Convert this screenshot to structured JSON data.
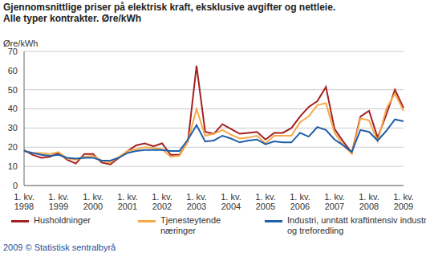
{
  "chart_data": {
    "type": "line",
    "title": "Gjennomsnittlige priser på elektrisk kraft, eksklusive avgifter og nettleie.",
    "subtitle": "Alle typer kontrakter. Øre/kWh",
    "y_label": "Øre/kWh",
    "source": "2009 © Statistisk sentralbyrå",
    "categories": [
      "1. kv. 1998",
      null,
      null,
      null,
      "1. kv. 1999",
      null,
      null,
      null,
      "1. kv. 2000",
      null,
      null,
      null,
      "1. kv. 2001",
      null,
      null,
      null,
      "1. kv. 2002",
      null,
      null,
      null,
      "1. kv. 2003",
      null,
      null,
      null,
      "1. kv. 2004",
      null,
      null,
      null,
      "1. kv. 2005",
      null,
      null,
      null,
      "1. kv. 2006",
      null,
      null,
      null,
      "1. kv. 2007",
      null,
      null,
      null,
      "1. kv. 2008",
      null,
      null,
      null,
      "1. kv. 2009"
    ],
    "series": [
      {
        "name": "Husholdninger",
        "color": "#a3201f",
        "values": [
          18.5,
          16,
          14.5,
          15,
          17,
          13.5,
          11.5,
          16.5,
          16.5,
          12,
          11,
          14.5,
          18,
          21,
          22,
          20.5,
          22,
          16,
          16,
          23,
          62.5,
          28,
          27,
          32,
          29.5,
          27,
          27.5,
          28,
          24,
          27.5,
          27.5,
          30,
          36,
          41,
          44,
          51.5,
          29.5,
          23,
          17,
          36,
          39,
          25,
          37,
          50,
          40.5
        ]
      },
      {
        "name": "Tjenesteytende næringer",
        "color": "#f5a94a",
        "values": [
          18,
          17,
          17,
          16.5,
          17.5,
          14,
          13.5,
          15,
          15.5,
          13,
          12,
          15,
          18,
          19,
          20,
          19.5,
          19,
          15,
          15.5,
          23,
          40,
          26,
          27,
          29,
          26.5,
          24.5,
          25,
          26,
          22,
          26,
          26,
          26,
          33,
          36,
          42,
          43,
          27.5,
          21,
          16.5,
          35,
          34,
          23,
          40,
          48,
          39
        ]
      },
      {
        "name": "Industri, unntatt kraftintensiv industri og treforedling",
        "color": "#1f5fa8",
        "values": [
          18,
          17,
          16,
          15.5,
          16,
          14.5,
          14,
          14.5,
          14.5,
          13,
          13,
          14.5,
          17,
          18,
          18.5,
          18.5,
          18.5,
          18,
          18,
          24,
          31.5,
          23,
          23.5,
          26,
          24.5,
          22.5,
          23.5,
          24,
          21.5,
          23,
          22.5,
          22.5,
          27.5,
          25.5,
          30.5,
          29,
          24,
          21,
          17.5,
          29,
          28,
          23.5,
          28.5,
          34.5,
          33.5
        ]
      }
    ],
    "ylim": [
      0,
      70
    ],
    "yticks": [
      0,
      10,
      20,
      30,
      40,
      50,
      60,
      70
    ],
    "grid": true,
    "legend": "bottom"
  }
}
